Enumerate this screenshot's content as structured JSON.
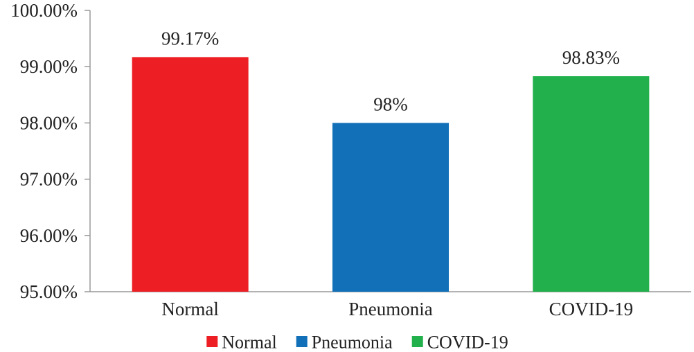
{
  "chart_data": {
    "type": "bar",
    "categories": [
      "Normal",
      "Pneumonia",
      "COVID-19"
    ],
    "values": [
      99.17,
      98.0,
      98.83
    ],
    "data_labels": [
      "99.17%",
      "98%",
      "98.83%"
    ],
    "colors": [
      "#ED1F24",
      "#1170B8",
      "#21B04B"
    ],
    "ylim": [
      95,
      100
    ],
    "yticks": [
      95,
      96,
      97,
      98,
      99,
      100
    ],
    "ytick_labels": [
      "95.00%",
      "96.00%",
      "97.00%",
      "98.00%",
      "99.00%",
      "100.00%"
    ],
    "grid": false,
    "legend": {
      "position": "bottom",
      "entries": [
        "Normal",
        "Pneumonia",
        "COVID-19"
      ]
    },
    "title": "",
    "xlabel": "",
    "ylabel": ""
  }
}
